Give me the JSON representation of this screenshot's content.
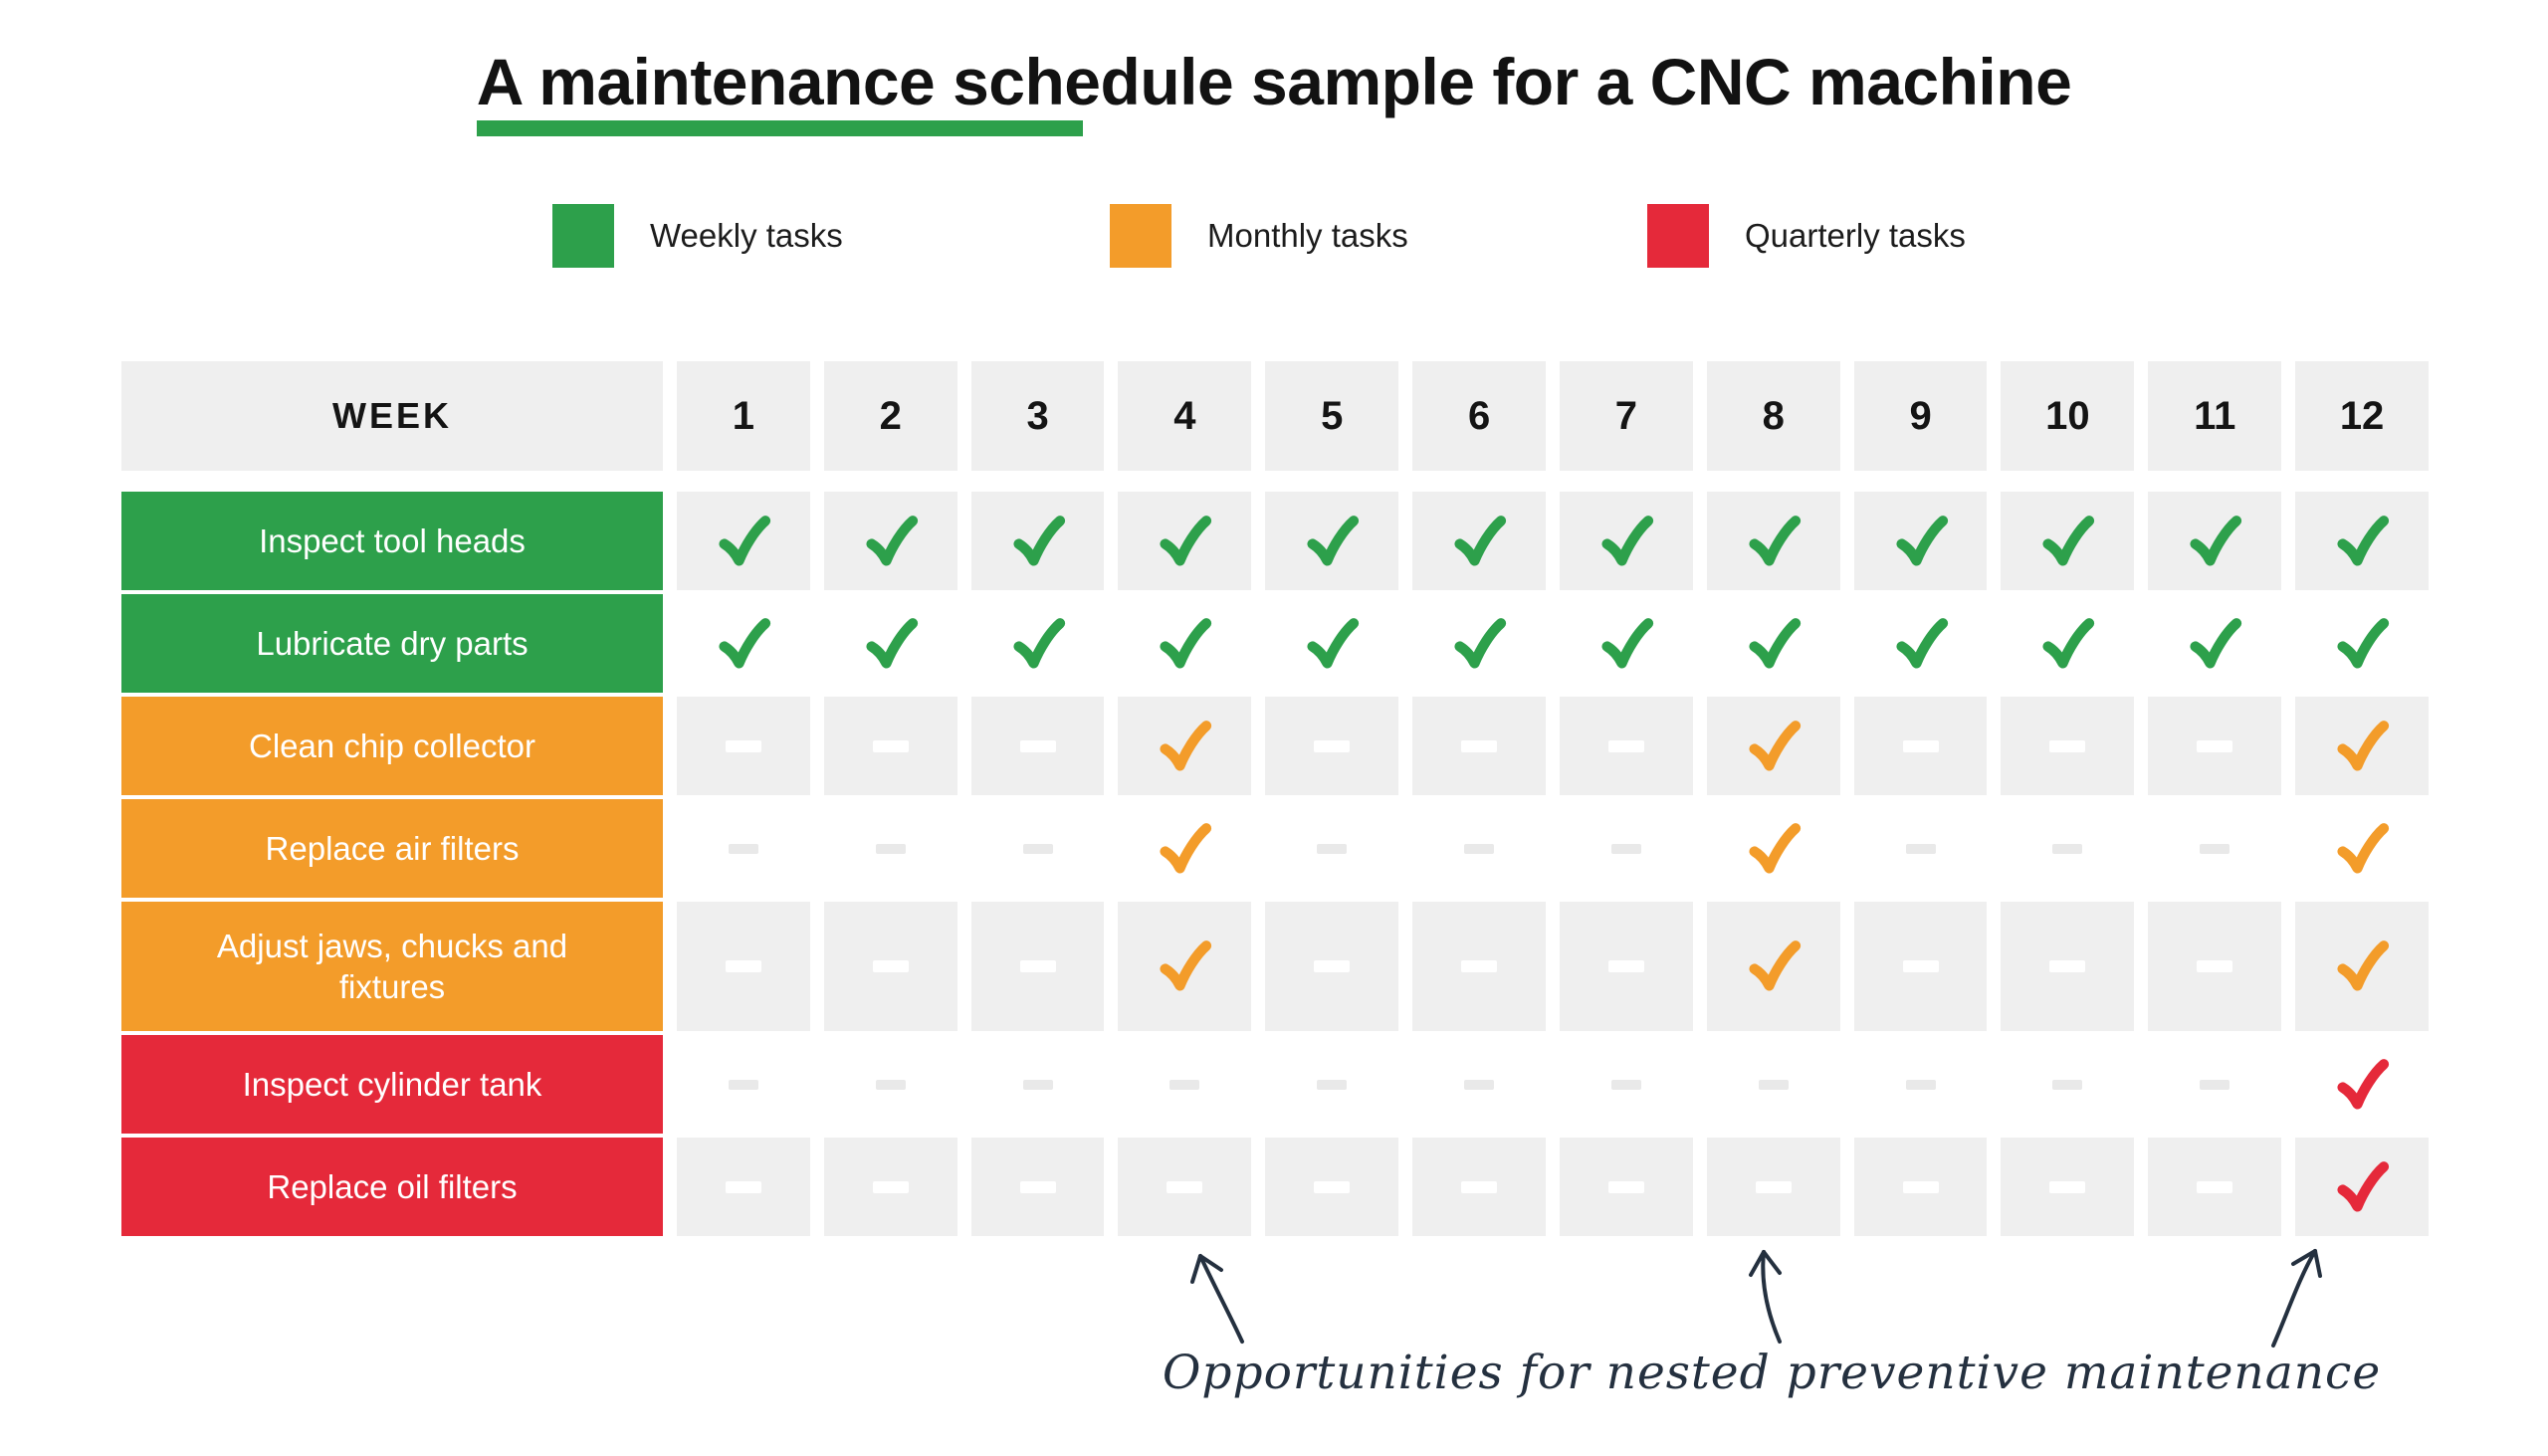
{
  "title": "A maintenance schedule sample for a CNC machine",
  "legend": {
    "items": [
      {
        "label": "Weekly tasks",
        "color": "#2da04b"
      },
      {
        "label": "Monthly tasks",
        "color": "#f39c2a"
      },
      {
        "label": "Quarterly tasks",
        "color": "#e5293a"
      }
    ]
  },
  "table": {
    "corner_label": "WEEK",
    "weeks": [
      "1",
      "2",
      "3",
      "4",
      "5",
      "6",
      "7",
      "8",
      "9",
      "10",
      "11",
      "12"
    ],
    "rows": [
      {
        "label": "Inspect tool heads",
        "frequency": "weekly",
        "color": "#2da04b",
        "shaded": true,
        "cells": [
          "check",
          "check",
          "check",
          "check",
          "check",
          "check",
          "check",
          "check",
          "check",
          "check",
          "check",
          "check"
        ]
      },
      {
        "label": "Lubricate dry parts",
        "frequency": "weekly",
        "color": "#2da04b",
        "shaded": false,
        "cells": [
          "check",
          "check",
          "check",
          "check",
          "check",
          "check",
          "check",
          "check",
          "check",
          "check",
          "check",
          "check"
        ]
      },
      {
        "label": "Clean chip collector",
        "frequency": "monthly",
        "color": "#f39c2a",
        "shaded": true,
        "cells": [
          "dash",
          "dash",
          "dash",
          "check",
          "dash",
          "dash",
          "dash",
          "check",
          "dash",
          "dash",
          "dash",
          "check"
        ]
      },
      {
        "label": "Replace air filters",
        "frequency": "monthly",
        "color": "#f39c2a",
        "shaded": false,
        "cells": [
          "dash",
          "dash",
          "dash",
          "check",
          "dash",
          "dash",
          "dash",
          "check",
          "dash",
          "dash",
          "dash",
          "check"
        ]
      },
      {
        "label": "Adjust jaws, chucks and fixtures",
        "frequency": "monthly",
        "color": "#f39c2a",
        "shaded": true,
        "cells": [
          "dash",
          "dash",
          "dash",
          "check",
          "dash",
          "dash",
          "dash",
          "check",
          "dash",
          "dash",
          "dash",
          "check"
        ]
      },
      {
        "label": "Inspect cylinder tank",
        "frequency": "quarterly",
        "color": "#e5293a",
        "shaded": false,
        "cells": [
          "dash",
          "dash",
          "dash",
          "dash",
          "dash",
          "dash",
          "dash",
          "dash",
          "dash",
          "dash",
          "dash",
          "check"
        ]
      },
      {
        "label": "Replace oil filters",
        "frequency": "quarterly",
        "color": "#e5293a",
        "shaded": true,
        "cells": [
          "dash",
          "dash",
          "dash",
          "dash",
          "dash",
          "dash",
          "dash",
          "dash",
          "dash",
          "dash",
          "dash",
          "check"
        ]
      }
    ]
  },
  "annotation": {
    "text": "Opportunities for nested preventive maintenance",
    "arrow_weeks": [
      "4",
      "8",
      "12"
    ]
  },
  "chart_data": {
    "type": "table",
    "title": "A maintenance schedule sample for a CNC machine",
    "columns": [
      "WEEK",
      "1",
      "2",
      "3",
      "4",
      "5",
      "6",
      "7",
      "8",
      "9",
      "10",
      "11",
      "12"
    ],
    "legend": [
      "Weekly tasks",
      "Monthly tasks",
      "Quarterly tasks"
    ],
    "rows": [
      {
        "task": "Inspect tool heads",
        "frequency": "weekly",
        "checked_weeks": [
          1,
          2,
          3,
          4,
          5,
          6,
          7,
          8,
          9,
          10,
          11,
          12
        ]
      },
      {
        "task": "Lubricate dry parts",
        "frequency": "weekly",
        "checked_weeks": [
          1,
          2,
          3,
          4,
          5,
          6,
          7,
          8,
          9,
          10,
          11,
          12
        ]
      },
      {
        "task": "Clean chip collector",
        "frequency": "monthly",
        "checked_weeks": [
          4,
          8,
          12
        ]
      },
      {
        "task": "Replace air filters",
        "frequency": "monthly",
        "checked_weeks": [
          4,
          8,
          12
        ]
      },
      {
        "task": "Adjust jaws, chucks and fixtures",
        "frequency": "monthly",
        "checked_weeks": [
          4,
          8,
          12
        ]
      },
      {
        "task": "Inspect cylinder tank",
        "frequency": "quarterly",
        "checked_weeks": [
          12
        ]
      },
      {
        "task": "Replace oil filters",
        "frequency": "quarterly",
        "checked_weeks": [
          12
        ]
      }
    ],
    "annotation": "Opportunities for nested preventive maintenance"
  }
}
